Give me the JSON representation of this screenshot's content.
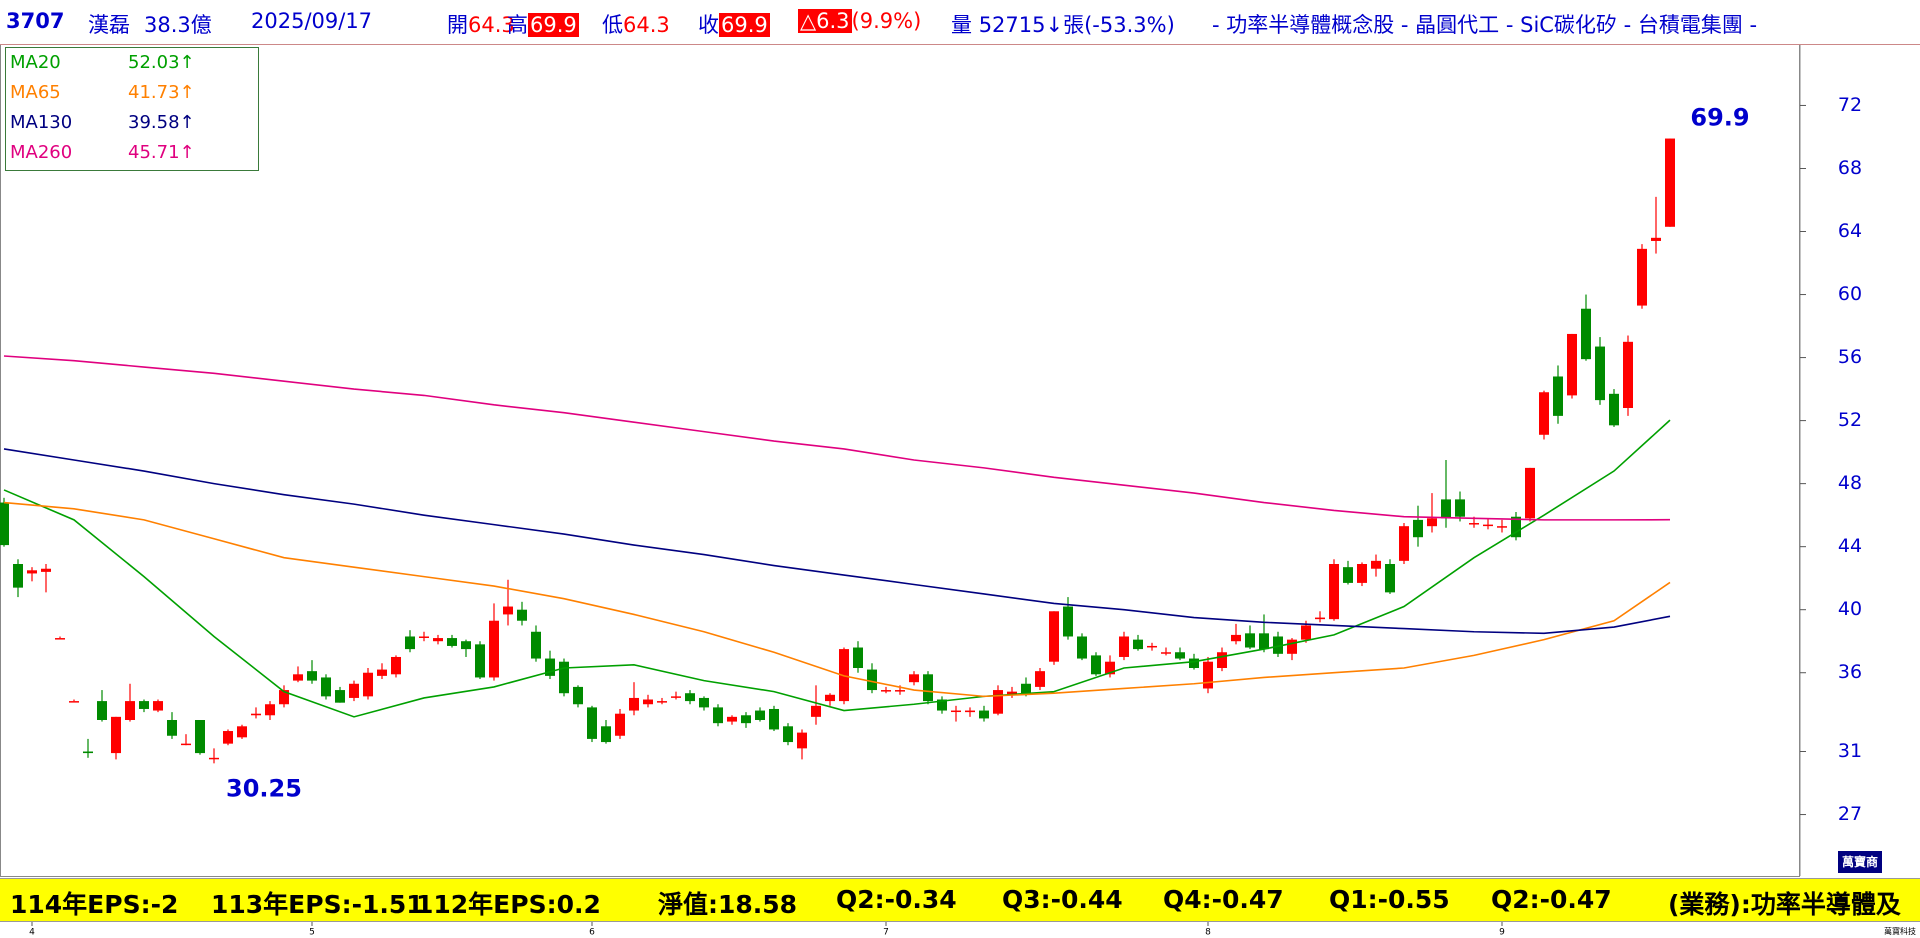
{
  "header": {
    "code": "3707",
    "name": "漢磊",
    "capital": "38.3億",
    "date": "2025/09/17",
    "open_label": "開",
    "open": 64.3,
    "high_label": "高",
    "high": 69.9,
    "low_label": "低",
    "low": 64.3,
    "close_label": "收",
    "close": 69.9,
    "change": "△6.3",
    "change_pct": "(9.9%)",
    "volume_label": "量",
    "volume": "52715↓張(-53.3%)",
    "tags": "- 功率半導體概念股 - 晶圓代工 - SiC碳化矽 - 台積電集團 -"
  },
  "chart_data": {
    "type": "candlestick",
    "up_color": "#ff0000",
    "down_color": "#008a00",
    "ylim": [
      23.1,
      75.9
    ],
    "yticks": [
      27,
      31,
      36,
      40,
      44,
      48,
      52,
      56,
      60,
      64,
      68,
      72
    ],
    "categories": [
      null,
      null,
      "4",
      null,
      null,
      null,
      null,
      null,
      null,
      null,
      null,
      null,
      null,
      null,
      null,
      null,
      null,
      null,
      null,
      null,
      null,
      null,
      "5",
      null,
      null,
      null,
      null,
      null,
      null,
      null,
      null,
      null,
      null,
      null,
      null,
      null,
      null,
      null,
      null,
      null,
      null,
      null,
      "6",
      null,
      null,
      null,
      null,
      null,
      null,
      null,
      null,
      null,
      null,
      null,
      null,
      null,
      null,
      null,
      null,
      null,
      null,
      null,
      null,
      "7",
      null,
      null,
      null,
      null,
      null,
      null,
      null,
      null,
      null,
      null,
      null,
      null,
      null,
      null,
      null,
      null,
      null,
      null,
      null,
      null,
      null,
      null,
      "8",
      null,
      null,
      null,
      null,
      null,
      null,
      null,
      null,
      null,
      null,
      null,
      null,
      null,
      null,
      null,
      null,
      null,
      null,
      null,
      null,
      "9",
      null,
      null,
      null,
      null,
      null,
      null,
      null,
      null,
      null,
      null,
      null,
      null
    ],
    "ohlc": {
      "open": [
        46.8,
        42.9,
        42.3,
        42.4,
        38.2,
        34.2,
        31.0,
        34.2,
        30.9,
        33.0,
        34.2,
        33.6,
        33.0,
        31.5,
        33.0,
        30.6,
        31.5,
        31.9,
        33.3,
        33.3,
        34.0,
        35.5,
        36.1,
        35.7,
        34.9,
        34.4,
        34.5,
        35.8,
        35.9,
        38.3,
        38.3,
        38.0,
        38.2,
        38.0,
        37.8,
        35.7,
        39.7,
        40.0,
        38.6,
        36.9,
        36.7,
        35.1,
        33.8,
        32.6,
        32.0,
        33.6,
        34.0,
        34.2,
        34.5,
        34.7,
        34.4,
        33.8,
        32.9,
        33.3,
        33.6,
        33.7,
        32.6,
        31.2,
        33.2,
        34.2,
        34.2,
        37.6,
        36.2,
        34.9,
        34.9,
        35.4,
        35.9,
        34.3,
        33.6,
        33.5,
        33.6,
        33.4,
        34.6,
        35.3,
        35.1,
        36.7,
        40.2,
        38.3,
        37.1,
        35.9,
        37.0,
        38.1,
        37.7,
        37.3,
        37.3,
        36.9,
        35.0,
        36.3,
        38.0,
        38.5,
        38.5,
        38.3,
        37.2,
        38.1,
        39.4,
        39.4,
        42.7,
        41.7,
        42.6,
        42.9,
        43.1,
        45.7,
        45.3,
        47.0,
        47.0,
        45.5,
        45.4,
        45.3,
        45.9,
        45.8,
        51.1,
        54.8,
        53.6,
        59.1,
        56.7,
        53.7,
        52.8,
        59.3,
        63.4,
        64.3
      ],
      "high": [
        47.1,
        43.2,
        42.7,
        42.9,
        38.3,
        34.3,
        31.8,
        34.9,
        33.2,
        35.3,
        34.3,
        34.3,
        33.5,
        32.1,
        33.0,
        31.2,
        32.4,
        32.7,
        33.8,
        34.2,
        35.2,
        36.4,
        36.8,
        35.9,
        35.1,
        35.5,
        36.3,
        36.6,
        37.1,
        38.7,
        38.6,
        38.4,
        38.4,
        38.1,
        38.0,
        40.4,
        41.9,
        40.5,
        39.0,
        37.4,
        36.9,
        35.2,
        33.9,
        33.0,
        33.7,
        35.4,
        34.6,
        34.4,
        34.8,
        34.9,
        34.5,
        34.0,
        33.3,
        33.5,
        33.8,
        33.9,
        32.8,
        32.4,
        35.2,
        34.7,
        37.6,
        38.0,
        36.6,
        35.1,
        35.2,
        36.1,
        36.1,
        34.5,
        33.9,
        33.8,
        33.9,
        35.2,
        35.1,
        35.7,
        36.3,
        39.9,
        40.8,
        38.5,
        37.3,
        37.1,
        38.6,
        38.4,
        37.9,
        37.6,
        37.6,
        37.2,
        37.0,
        37.6,
        39.1,
        39.0,
        39.7,
        38.6,
        38.2,
        39.3,
        39.9,
        43.2,
        43.1,
        43.0,
        43.5,
        43.2,
        45.5,
        46.6,
        47.4,
        49.5,
        47.5,
        45.9,
        45.8,
        45.7,
        46.2,
        49.0,
        53.9,
        55.5,
        57.5,
        60.0,
        57.3,
        54.0,
        57.4,
        63.2,
        66.2,
        69.9
      ],
      "low": [
        44.0,
        40.8,
        41.8,
        41.1,
        38.2,
        34.2,
        30.6,
        32.9,
        30.5,
        32.9,
        33.5,
        33.5,
        31.8,
        31.4,
        30.8,
        30.25,
        31.4,
        31.8,
        33.1,
        33.0,
        33.8,
        35.4,
        35.3,
        34.3,
        34.1,
        34.2,
        34.3,
        35.6,
        35.7,
        37.3,
        38.0,
        37.8,
        37.6,
        37.0,
        35.6,
        35.5,
        39.0,
        39.0,
        36.7,
        35.6,
        34.5,
        33.8,
        31.6,
        31.5,
        31.8,
        33.3,
        33.8,
        34.0,
        34.3,
        34.0,
        33.6,
        32.6,
        32.7,
        32.5,
        32.9,
        32.3,
        31.4,
        30.5,
        32.7,
        33.9,
        34.0,
        36.0,
        34.7,
        34.7,
        34.6,
        35.2,
        34.0,
        33.4,
        32.9,
        33.2,
        32.9,
        33.3,
        34.4,
        34.5,
        34.9,
        36.5,
        38.1,
        36.8,
        35.8,
        35.7,
        36.8,
        37.4,
        37.4,
        37.1,
        36.8,
        36.2,
        34.7,
        36.1,
        37.8,
        37.5,
        37.3,
        37.0,
        36.8,
        37.9,
        39.2,
        39.3,
        41.6,
        41.5,
        42.1,
        41.0,
        42.9,
        44.0,
        44.9,
        45.2,
        45.6,
        45.2,
        45.1,
        44.9,
        44.4,
        45.6,
        50.8,
        51.8,
        53.4,
        55.8,
        53.0,
        51.6,
        52.3,
        59.1,
        62.6,
        64.3
      ],
      "close": [
        44.1,
        41.4,
        42.5,
        42.6,
        38.2,
        34.2,
        30.9,
        33.0,
        33.2,
        34.2,
        33.7,
        34.2,
        32.0,
        31.5,
        30.9,
        30.6,
        32.3,
        32.6,
        33.4,
        34.0,
        34.9,
        35.9,
        35.5,
        34.5,
        34.1,
        35.3,
        36.0,
        36.2,
        37.0,
        37.5,
        38.3,
        38.2,
        37.7,
        37.5,
        35.7,
        39.3,
        40.2,
        39.3,
        36.9,
        35.8,
        34.7,
        34.0,
        31.8,
        31.6,
        33.4,
        34.4,
        34.3,
        34.2,
        34.5,
        34.2,
        33.8,
        32.8,
        33.2,
        32.8,
        33.0,
        32.4,
        31.6,
        32.2,
        33.9,
        34.6,
        37.5,
        36.3,
        34.9,
        34.9,
        34.9,
        35.9,
        34.2,
        33.6,
        33.6,
        33.6,
        33.1,
        34.9,
        34.8,
        34.7,
        36.1,
        39.9,
        38.3,
        36.9,
        35.9,
        36.7,
        38.3,
        37.5,
        37.7,
        37.3,
        36.9,
        36.3,
        36.7,
        37.3,
        38.4,
        37.6,
        37.5,
        37.2,
        38.1,
        39.0,
        39.5,
        42.9,
        41.7,
        42.9,
        43.1,
        41.1,
        45.3,
        44.6,
        45.8,
        45.8,
        45.9,
        45.5,
        45.4,
        45.3,
        44.6,
        49.0,
        53.8,
        52.3,
        57.5,
        55.9,
        53.3,
        51.7,
        57.0,
        62.9,
        63.6,
        69.9
      ]
    },
    "ma_x": [
      0,
      5,
      10,
      15,
      20,
      25,
      30,
      35,
      40,
      45,
      50,
      55,
      60,
      65,
      70,
      75,
      80,
      85,
      90,
      95,
      100,
      105,
      110,
      115,
      119
    ],
    "lines": [
      {
        "name": "MA20",
        "legend_value": "52.03↑",
        "color": "#00a000",
        "values": [
          47.6,
          45.7,
          42.1,
          38.3,
          34.8,
          33.2,
          34.4,
          35.1,
          36.3,
          36.5,
          35.5,
          34.8,
          33.6,
          34.0,
          34.5,
          34.8,
          36.3,
          36.7,
          37.5,
          38.4,
          40.2,
          43.3,
          46.0,
          48.8,
          52.03
        ]
      },
      {
        "name": "MA65",
        "legend_value": "41.73↑",
        "color": "#ff8000",
        "values": [
          46.8,
          46.4,
          45.7,
          44.5,
          43.3,
          42.7,
          42.1,
          41.5,
          40.7,
          39.7,
          38.6,
          37.3,
          35.8,
          34.9,
          34.5,
          34.7,
          35.0,
          35.3,
          35.7,
          36.0,
          36.3,
          37.1,
          38.1,
          39.3,
          41.73
        ]
      },
      {
        "name": "MA130",
        "legend_value": "39.58↑",
        "color": "#000080",
        "values": [
          50.2,
          49.5,
          48.8,
          48.0,
          47.3,
          46.7,
          46.0,
          45.4,
          44.8,
          44.1,
          43.5,
          42.8,
          42.2,
          41.6,
          41.0,
          40.4,
          40.0,
          39.5,
          39.2,
          39.0,
          38.8,
          38.6,
          38.5,
          38.9,
          39.58
        ]
      },
      {
        "name": "MA260",
        "legend_value": "45.71↑",
        "color": "#e0007f",
        "values": [
          56.1,
          55.8,
          55.4,
          55.0,
          54.5,
          54.0,
          53.6,
          53.0,
          52.5,
          51.9,
          51.3,
          50.7,
          50.2,
          49.5,
          49.0,
          48.4,
          47.9,
          47.4,
          46.8,
          46.3,
          45.9,
          45.8,
          45.7,
          45.7,
          45.71
        ]
      }
    ],
    "annotations": [
      {
        "text": "69.9",
        "value": 69.9,
        "at": "high"
      },
      {
        "text": "30.25",
        "value": 30.25,
        "at": "low"
      }
    ]
  },
  "footer": [
    "114年EPS:-2",
    "113年EPS:-1.51",
    "112年EPS:0.2",
    "淨值:18.58",
    "Q2:-0.34",
    "Q3:-0.44",
    "Q4:-0.47",
    "Q1:-0.55",
    "Q2:-0.47",
    "(業務):功率半導體及"
  ],
  "logo": {
    "title": "萬寶商",
    "caption": "萬寶科技"
  }
}
